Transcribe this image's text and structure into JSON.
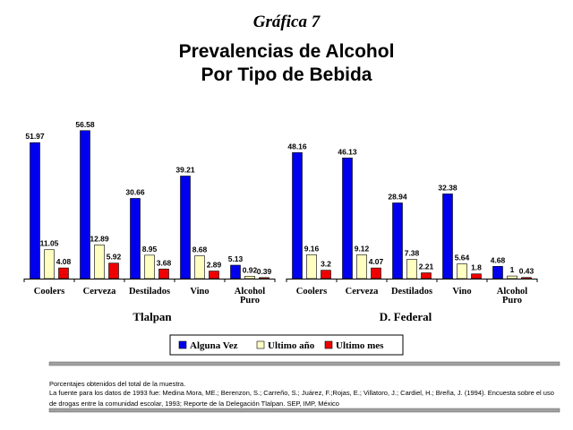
{
  "graph_label": "Gráfica 7",
  "title_line1": "Prevalencias de Alcohol",
  "title_line2": "Por Tipo de Bebida",
  "footnote": {
    "line1": "Porcentajes obtenidos del total de la muestra.",
    "line2": "La fuente para los datos de 1993 fue: Medina Mora, ME.; Berenzon, S.; Carreño, S.; Juárez, F.;Rojas, E.; Villatoro, J.; Cardiel, H.; Breña, J. (1994). Encuesta sobre el uso de drogas entre la comunidad escolar, 1993; Reporte de la Delegación Tlalpan. SEP, IMP, México"
  },
  "colors": {
    "Alguna Vez": "#0000ee",
    "Ultimo año": "#ffffc0",
    "Ultimo mes": "#ee0000"
  },
  "chart_data": {
    "type": "bar",
    "legend_position": "bottom",
    "grid": false,
    "ylim": [
      0,
      60
    ],
    "legend": [
      "Alguna Vez",
      "Ultimo año",
      "Ultimo mes"
    ],
    "groups": [
      {
        "name": "Tlalpan",
        "categories": [
          "Coolers",
          "Cerveza",
          "Destilados",
          "Vino",
          "Alcohol Puro"
        ],
        "series": [
          {
            "name": "Alguna Vez",
            "values": [
              51.97,
              56.58,
              30.66,
              39.21,
              5.13
            ]
          },
          {
            "name": "Ultimo año",
            "values": [
              11.05,
              12.89,
              8.95,
              8.68,
              0.92
            ]
          },
          {
            "name": "Ultimo mes",
            "values": [
              4.08,
              5.92,
              3.68,
              2.89,
              0.39
            ]
          }
        ]
      },
      {
        "name": "D. Federal",
        "categories": [
          "Coolers",
          "Cerveza",
          "Destilados",
          "Vino",
          "Alcohol Puro"
        ],
        "series": [
          {
            "name": "Alguna Vez",
            "values": [
              48.16,
              46.13,
              28.94,
              32.38,
              4.68
            ]
          },
          {
            "name": "Ultimo año",
            "values": [
              9.16,
              9.12,
              7.38,
              5.64,
              1
            ]
          },
          {
            "name": "Ultimo mes",
            "values": [
              3.2,
              4.07,
              2.21,
              1.8,
              0.43
            ]
          }
        ]
      }
    ]
  }
}
